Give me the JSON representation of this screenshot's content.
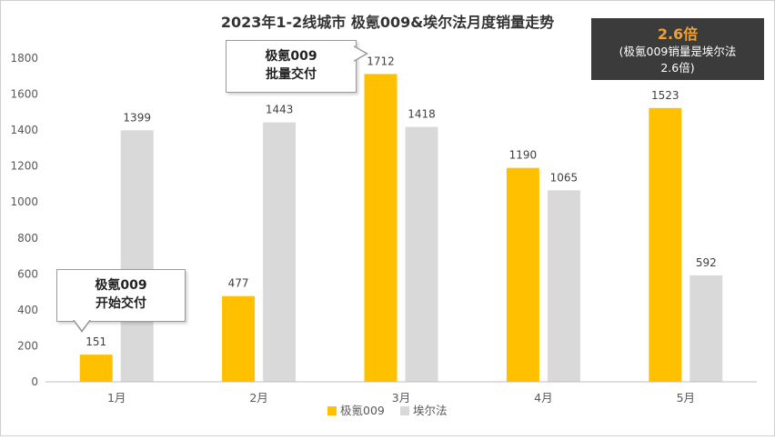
{
  "chart_data": {
    "type": "bar",
    "title": "2023年1-2线城市  极氪009&埃尔法月度销量走势",
    "categories": [
      "1月",
      "2月",
      "3月",
      "4月",
      "5月"
    ],
    "series": [
      {
        "name": "极氪009",
        "values": [
          151,
          477,
          1712,
          1190,
          1523
        ]
      },
      {
        "name": "埃尔法",
        "values": [
          1399,
          1443,
          1418,
          1065,
          592
        ]
      }
    ],
    "ylim": [
      0,
      1800
    ],
    "yticks": [
      0,
      200,
      400,
      600,
      800,
      1000,
      1200,
      1400,
      1600,
      1800
    ],
    "grid": false,
    "legend_position": "bottom",
    "colors": {
      "极氪009": "#FFC000",
      "埃尔法": "#D9D9D9"
    },
    "annotations": {
      "callout_1": [
        "极氪009",
        "开始交付"
      ],
      "callout_2": [
        "极氪009",
        "批量交付"
      ],
      "summary_headline": "2.6倍",
      "summary_line1": "(极氪009销量是埃尔法",
      "summary_line2": "2.6倍)"
    }
  }
}
